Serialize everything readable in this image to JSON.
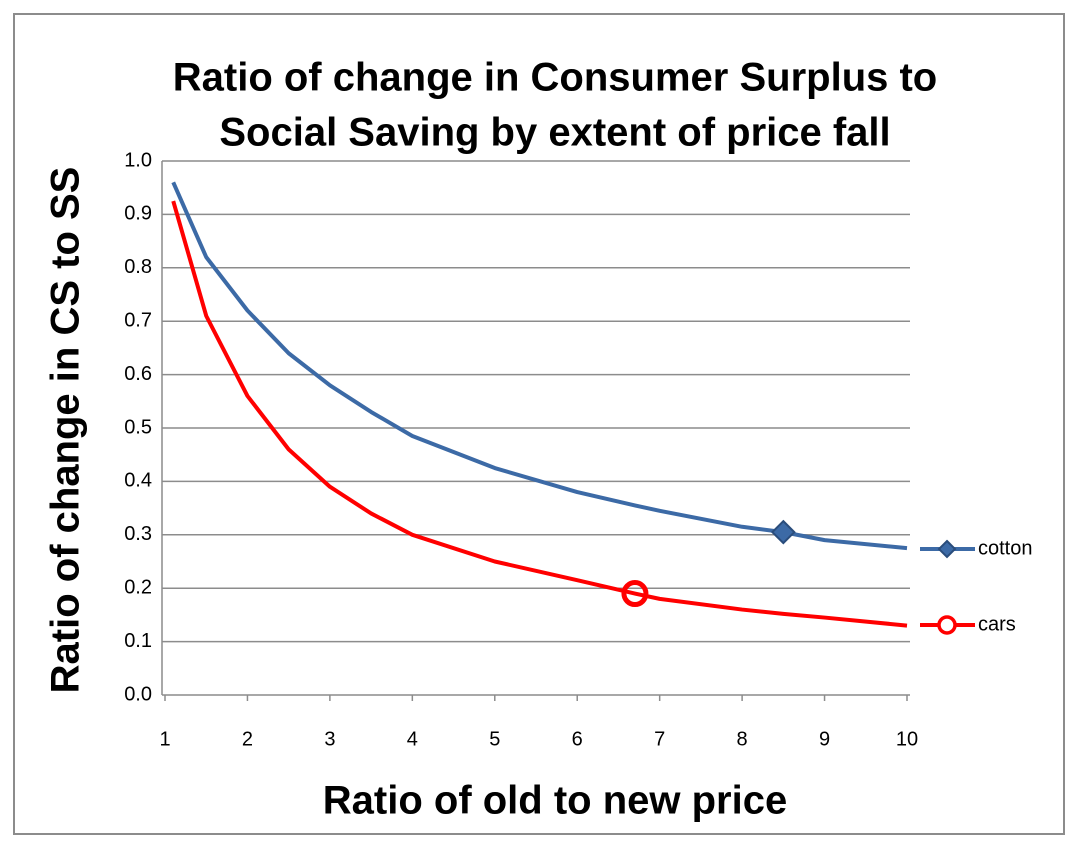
{
  "chart_data": {
    "type": "line",
    "title": [
      "Ratio of change in Consumer Surplus to",
      "Social Saving by extent of price fall"
    ],
    "xlabel": "Ratio of old to new price",
    "ylabel": "Ratio of change in CS to SS",
    "x": [
      1.1,
      1.5,
      2,
      2.5,
      3,
      3.5,
      4,
      5,
      6,
      6.7,
      7,
      8,
      8.5,
      9,
      10
    ],
    "series": [
      {
        "name": "cotton",
        "color": "#3c6aa6",
        "marker": "diamond",
        "marker_index": 12,
        "values": [
          0.96,
          0.82,
          0.72,
          0.64,
          0.58,
          0.53,
          0.485,
          0.425,
          0.38,
          0.355,
          0.345,
          0.315,
          0.305,
          0.29,
          0.275
        ]
      },
      {
        "name": "cars",
        "color": "#ff0000",
        "marker": "circle",
        "marker_index": 9,
        "values": [
          0.925,
          0.71,
          0.56,
          0.46,
          0.39,
          0.34,
          0.3,
          0.25,
          0.215,
          0.19,
          0.18,
          0.16,
          0.152,
          0.145,
          0.13
        ]
      }
    ],
    "xlim": [
      1,
      10
    ],
    "xticks": [
      1,
      2,
      3,
      4,
      5,
      6,
      7,
      8,
      9,
      10
    ],
    "ylim": [
      0,
      1
    ],
    "yticks": [
      {
        "value": 0,
        "label": "0.0"
      },
      0.1,
      0.2,
      0.3,
      0.4,
      0.5,
      0.6,
      0.7,
      0.8,
      0.9,
      {
        "value": 1,
        "label": "1.0"
      }
    ],
    "grid": true,
    "legend": "right"
  }
}
